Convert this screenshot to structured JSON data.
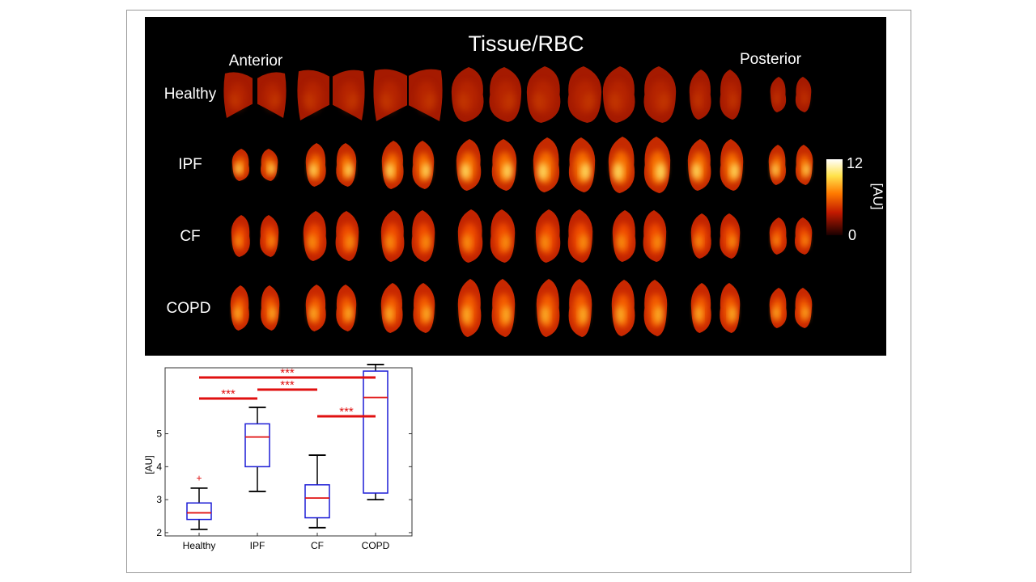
{
  "figure": {
    "title": "Tissue/RBC",
    "orientation": {
      "left": "Anterior",
      "right": "Posterior"
    },
    "rows": [
      {
        "label": "Healthy",
        "shape": "healthy",
        "base": "#a51a00",
        "hot": "#d43800",
        "hot2": "#ff8a00",
        "hotOpacity": 0.35,
        "hot2Opacity": 0.15
      },
      {
        "label": "IPF",
        "shape": "ipf",
        "base": "#c52a00",
        "hot": "#ff7a00",
        "hot2": "#ffe76a",
        "hotOpacity": 0.85,
        "hot2Opacity": 0.85
      },
      {
        "label": "CF",
        "shape": "cf",
        "base": "#c22400",
        "hot": "#ff5a00",
        "hot2": "#ffc21e",
        "hotOpacity": 0.75,
        "hot2Opacity": 0.55
      },
      {
        "label": "COPD",
        "shape": "copd",
        "base": "#c82800",
        "hot": "#ff6a00",
        "hot2": "#ffd83a",
        "hotOpacity": 0.8,
        "hot2Opacity": 0.65
      }
    ],
    "colorbar": {
      "max": "12",
      "min": "0",
      "unit": "[AU]"
    }
  },
  "chart_data": {
    "type": "box",
    "ylabel": "[AU]",
    "yticks": [
      2,
      3,
      4,
      5
    ],
    "ylim": [
      1.9,
      7.0
    ],
    "categories": [
      "Healthy",
      "IPF",
      "CF",
      "COPD"
    ],
    "boxes": [
      {
        "category": "Healthy",
        "whisker_low": 2.1,
        "q1": 2.4,
        "median": 2.6,
        "q3": 2.9,
        "whisker_high": 3.35,
        "outliers": [
          3.65
        ]
      },
      {
        "category": "IPF",
        "whisker_low": 3.25,
        "q1": 4.0,
        "median": 4.9,
        "q3": 5.3,
        "whisker_high": 5.8,
        "outliers": []
      },
      {
        "category": "CF",
        "whisker_low": 2.15,
        "q1": 2.45,
        "median": 3.05,
        "q3": 3.45,
        "whisker_high": 4.35,
        "outliers": []
      },
      {
        "category": "COPD",
        "whisker_low": 3.0,
        "q1": 3.2,
        "median": 6.1,
        "q3": 6.9,
        "whisker_high": 7.1,
        "outliers": []
      }
    ],
    "significance": [
      {
        "from": "Healthy",
        "to": "COPD",
        "label": "***"
      },
      {
        "from": "Healthy",
        "to": "IPF",
        "label": "***"
      },
      {
        "from": "CF",
        "to": "COPD",
        "label": "***"
      },
      {
        "from": "IPF",
        "to": "CF",
        "label": "***"
      }
    ],
    "colors": {
      "box": "#1c1cd6",
      "median": "#e01010",
      "whisker": "#000000",
      "significance": "#e01010",
      "outlier": "#e01010"
    }
  }
}
